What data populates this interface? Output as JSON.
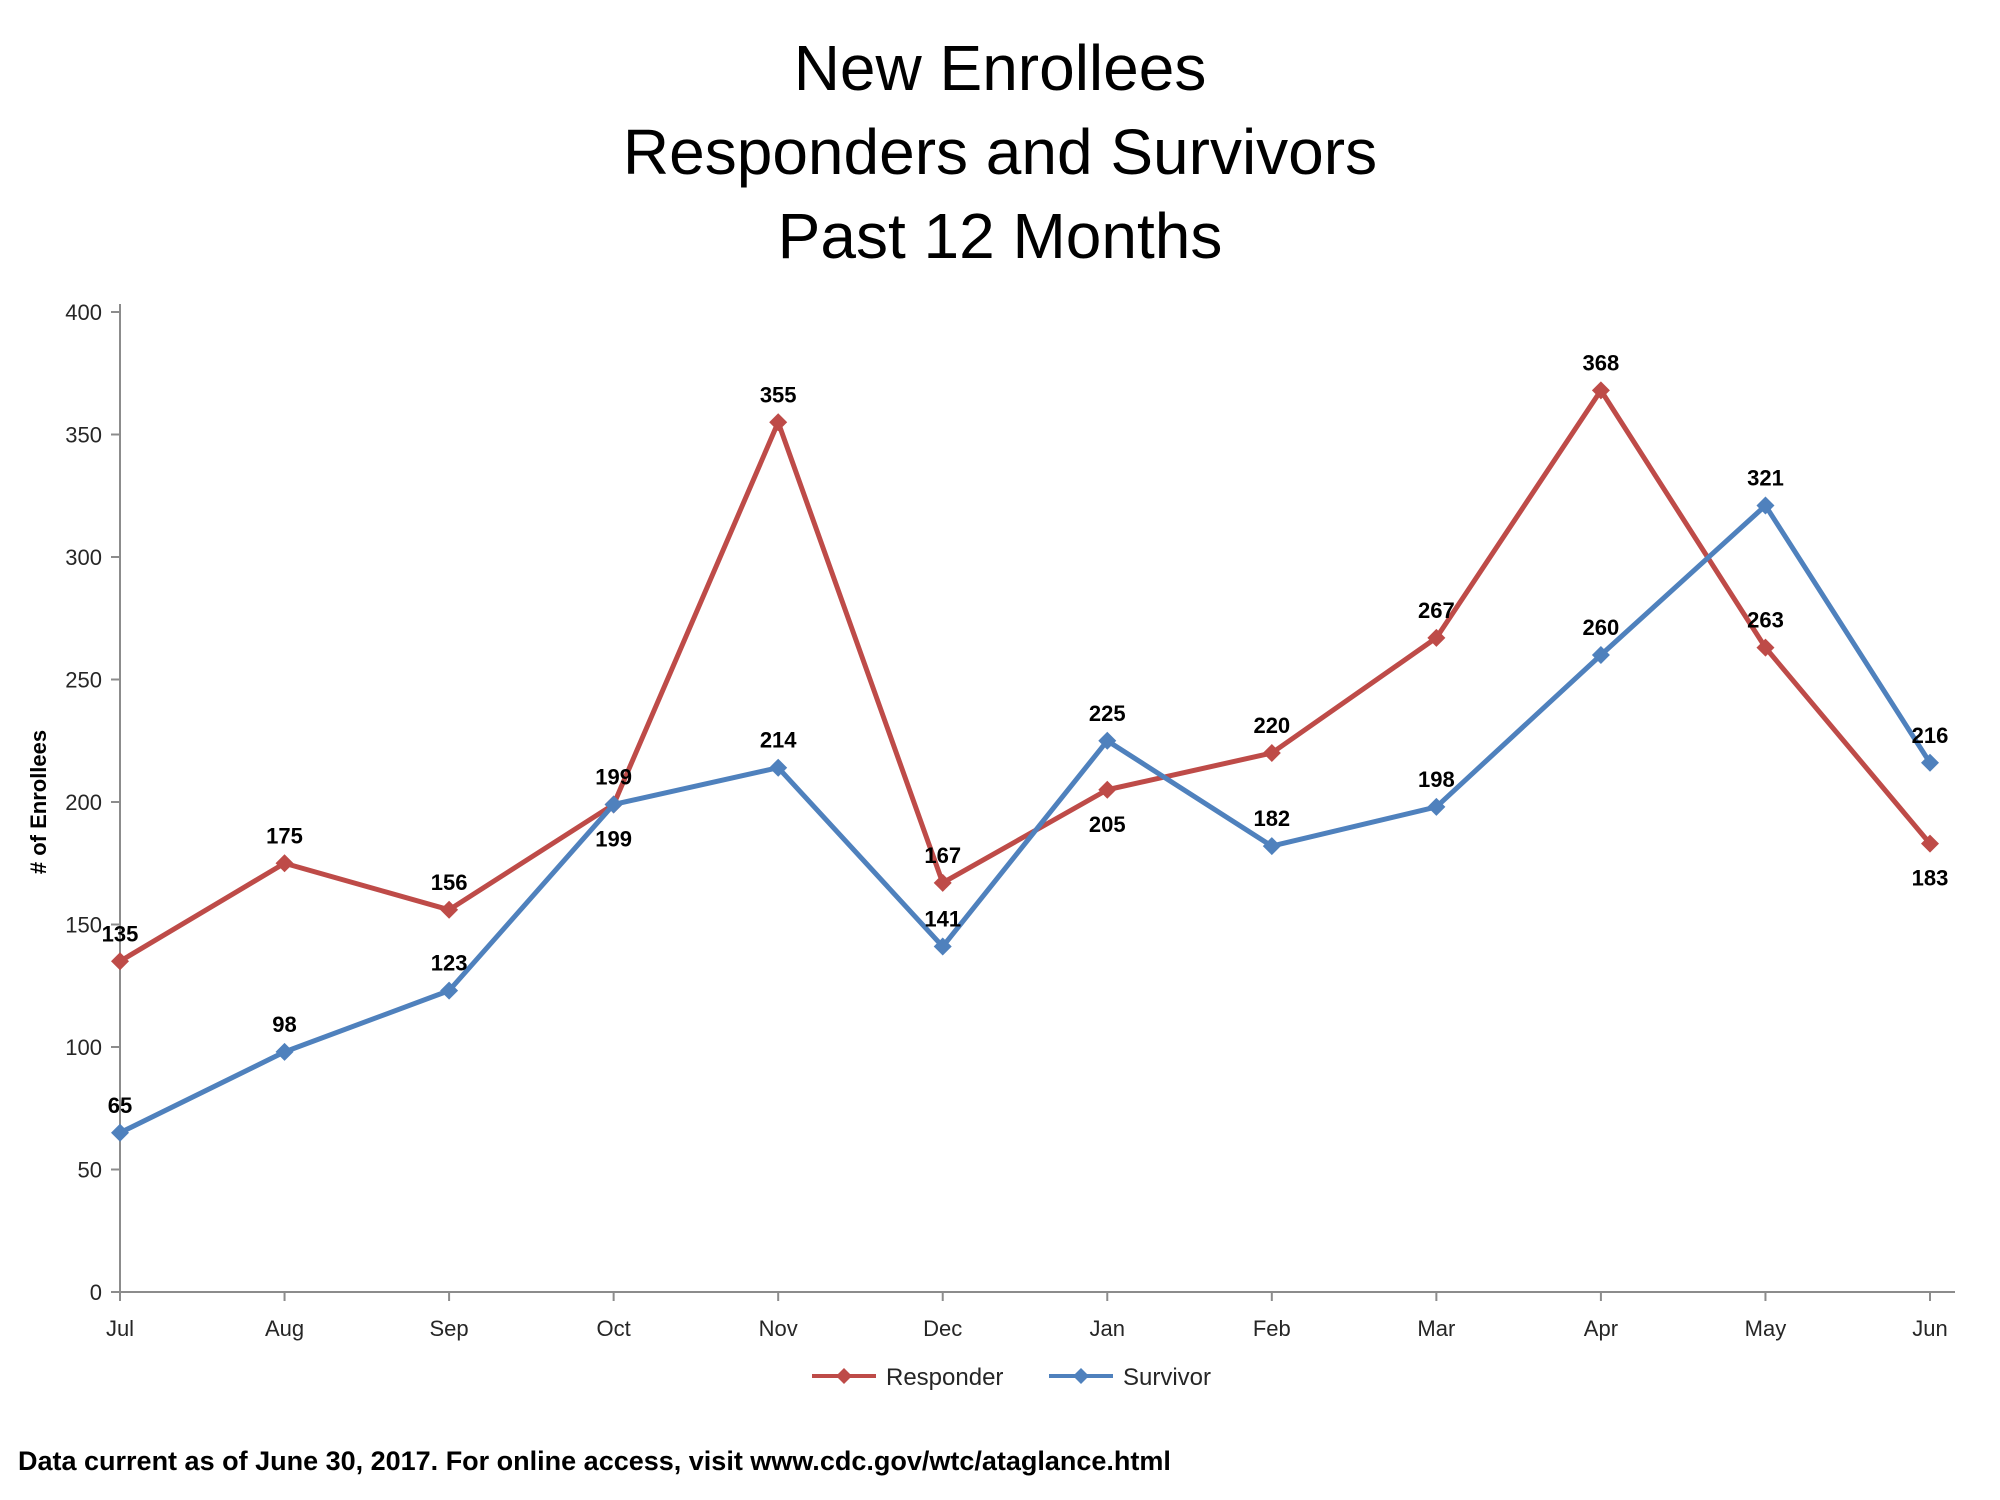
{
  "title": {
    "line1": "New Enrollees",
    "line2": "Responders and Survivors",
    "line3": "Past 12 Months"
  },
  "footer": "Data current as of June 30, 2017. For online access, visit www.cdc.gov/wtc/ataglance.html",
  "chart_data": {
    "type": "line",
    "title": "New Enrollees Responders and Survivors Past 12 Months",
    "categories": [
      "Jul",
      "Aug",
      "Sep",
      "Oct",
      "Nov",
      "Dec",
      "Jan",
      "Feb",
      "Mar",
      "Apr",
      "May",
      "Jun"
    ],
    "series": [
      {
        "name": "Responder",
        "color": "#BE4B48",
        "marker": "diamond",
        "values": [
          135,
          175,
          156,
          199,
          355,
          167,
          205,
          220,
          267,
          368,
          263,
          183
        ],
        "label_positions": [
          "above",
          "above",
          "above",
          "above",
          "above",
          "above",
          "below",
          "above",
          "above",
          "above",
          "above",
          "below"
        ]
      },
      {
        "name": "Survivor",
        "color": "#4F81BD",
        "marker": "diamond",
        "values": [
          65,
          98,
          123,
          199,
          214,
          141,
          225,
          182,
          198,
          260,
          321,
          216
        ],
        "label_positions": [
          "above",
          "above",
          "above",
          "below",
          "above",
          "above",
          "above",
          "above",
          "above",
          "above",
          "above",
          "above"
        ]
      }
    ],
    "xlabel": "",
    "ylabel": "# of Enrollees",
    "ylim": [
      0,
      400
    ],
    "ytick_step": 50,
    "grid": false,
    "legend_position": "bottom",
    "data_labels": true
  }
}
